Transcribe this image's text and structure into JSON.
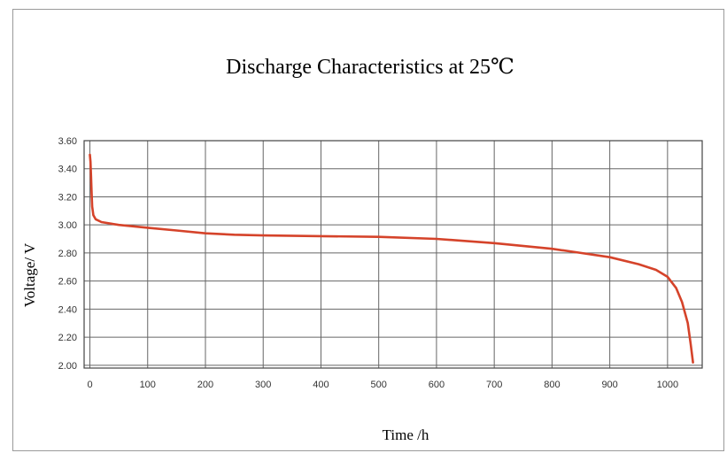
{
  "chart_data": {
    "type": "line",
    "title": "Discharge Characteristics at 25℃",
    "xlabel": "Time /h",
    "ylabel": "Voltage/ V",
    "xlim": [
      -10,
      1060
    ],
    "ylim": [
      1.98,
      3.6
    ],
    "x_ticks": [
      0,
      100,
      200,
      300,
      400,
      500,
      600,
      700,
      800,
      900,
      1000
    ],
    "y_ticks": [
      2.0,
      2.2,
      2.4,
      2.6,
      2.8,
      3.0,
      3.2,
      3.4,
      3.6
    ],
    "x_tick_labels": [
      "0",
      "100",
      "200",
      "300",
      "400",
      "500",
      "600",
      "700",
      "800",
      "900",
      "1000"
    ],
    "y_tick_labels": [
      "2.00",
      "2.20",
      "2.40",
      "2.60",
      "2.80",
      "3.00",
      "3.20",
      "3.40",
      "3.60"
    ],
    "grid": true,
    "series": [
      {
        "color": "#d5432a",
        "points": [
          [
            0,
            3.5
          ],
          [
            1,
            3.45
          ],
          [
            2,
            3.35
          ],
          [
            3,
            3.22
          ],
          [
            4,
            3.13
          ],
          [
            6,
            3.07
          ],
          [
            10,
            3.04
          ],
          [
            20,
            3.02
          ],
          [
            50,
            3.0
          ],
          [
            100,
            2.98
          ],
          [
            150,
            2.96
          ],
          [
            200,
            2.94
          ],
          [
            250,
            2.93
          ],
          [
            300,
            2.925
          ],
          [
            400,
            2.92
          ],
          [
            500,
            2.915
          ],
          [
            600,
            2.9
          ],
          [
            700,
            2.87
          ],
          [
            800,
            2.83
          ],
          [
            850,
            2.8
          ],
          [
            900,
            2.77
          ],
          [
            950,
            2.72
          ],
          [
            980,
            2.68
          ],
          [
            1000,
            2.63
          ],
          [
            1015,
            2.55
          ],
          [
            1025,
            2.45
          ],
          [
            1035,
            2.3
          ],
          [
            1040,
            2.15
          ],
          [
            1044,
            2.02
          ]
        ]
      }
    ]
  }
}
